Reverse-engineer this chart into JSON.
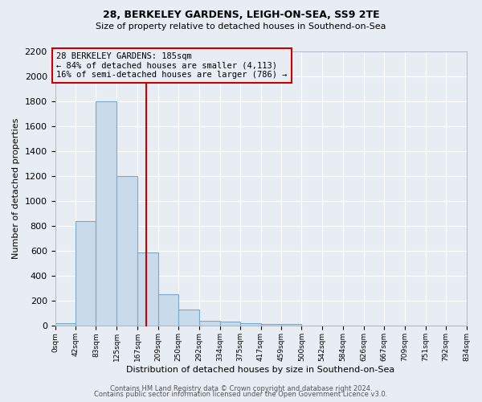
{
  "title": "28, BERKELEY GARDENS, LEIGH-ON-SEA, SS9 2TE",
  "subtitle": "Size of property relative to detached houses in Southend-on-Sea",
  "xlabel": "Distribution of detached houses by size in Southend-on-Sea",
  "ylabel": "Number of detached properties",
  "bar_color": "#c9daea",
  "bar_edge_color": "#7aaac8",
  "background_color": "#e8edf4",
  "grid_color": "#ffffff",
  "annotation_box_color": "#cc0000",
  "vline_color": "#cc0000",
  "annotation_title": "28 BERKELEY GARDENS: 185sqm",
  "annotation_line1": "← 84% of detached houses are smaller (4,113)",
  "annotation_line2": "16% of semi-detached houses are larger (786) →",
  "footer1": "Contains HM Land Registry data © Crown copyright and database right 2024.",
  "footer2": "Contains public sector information licensed under the Open Government Licence v3.0.",
  "bin_edges": [
    0,
    42,
    83,
    125,
    167,
    209,
    250,
    292,
    334,
    375,
    417,
    459,
    500,
    542,
    584,
    626,
    667,
    709,
    751,
    792,
    834
  ],
  "bar_heights": [
    25,
    840,
    1800,
    1200,
    590,
    255,
    130,
    40,
    35,
    25,
    15,
    15,
    0,
    0,
    0,
    0,
    0,
    0,
    0,
    0
  ],
  "vline_x": 185,
  "ylim": [
    0,
    2200
  ],
  "yticks": [
    0,
    200,
    400,
    600,
    800,
    1000,
    1200,
    1400,
    1600,
    1800,
    2000,
    2200
  ]
}
